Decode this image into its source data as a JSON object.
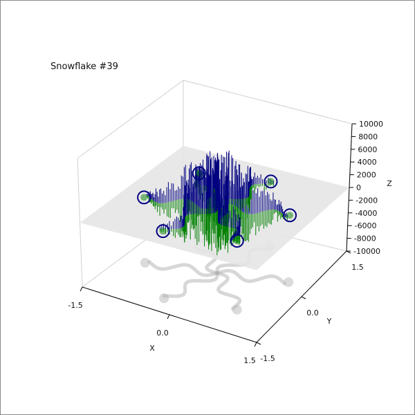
{
  "chart_data": {
    "type": "3d-line-stem",
    "title": "Snowflake #39",
    "xlabel": "X",
    "ylabel": "Y",
    "zlabel": "Z",
    "xlim": [
      -1.5,
      1.5
    ],
    "ylim": [
      -1.5,
      1.5
    ],
    "zlim": [
      -10000,
      10000
    ],
    "x_ticks": [
      "-1.5",
      "0.0",
      "1.5"
    ],
    "y_ticks": [
      "-1.5",
      "0.0",
      "1.5"
    ],
    "z_ticks": [
      "-10000",
      "-8000",
      "-6000",
      "-4000",
      "-2000",
      "0",
      "2000",
      "4000",
      "6000",
      "8000",
      "10000"
    ],
    "grid": true,
    "series": [
      {
        "color": "#000080",
        "description_values": {
          "symmetry_arms": 6,
          "z_range": [
            -10000,
            10000
          ]
        }
      },
      {
        "color": "#008000",
        "description_values": {
          "symmetry_arms": 6,
          "z_range": [
            -8000,
            0
          ]
        }
      }
    ],
    "plane_z": 0,
    "shadow_color": "#b0b0b0",
    "plane_color": "#e6e6e6"
  }
}
